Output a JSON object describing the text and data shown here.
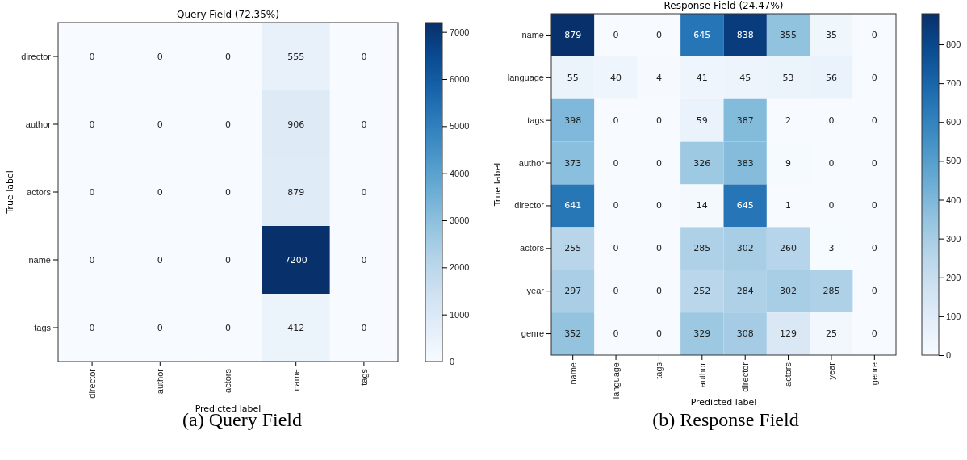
{
  "chart_data": [
    {
      "type": "heatmap",
      "title": "Query Field (72.35%)",
      "xlabel": "Predicted label",
      "ylabel": "True label",
      "categories": [
        "director",
        "author",
        "actors",
        "name",
        "tags"
      ],
      "y_categories": [
        "director",
        "author",
        "actors",
        "name",
        "tags"
      ],
      "cells": [
        [
          0,
          0,
          0,
          555,
          0
        ],
        [
          0,
          0,
          0,
          906,
          0
        ],
        [
          0,
          0,
          0,
          879,
          0
        ],
        [
          0,
          0,
          0,
          7200,
          0
        ],
        [
          0,
          0,
          0,
          412,
          0
        ]
      ],
      "clim": [
        0,
        7200
      ],
      "cticks": [
        0,
        1000,
        2000,
        3000,
        4000,
        5000,
        6000,
        7000
      ],
      "data_labels": true,
      "annotations": [
        "(a) Query Field"
      ]
    },
    {
      "type": "heatmap",
      "title": "Response Field (24.47%)",
      "xlabel": "Predicted label",
      "ylabel": "True label",
      "categories": [
        "name",
        "language",
        "tags",
        "author",
        "director",
        "actors",
        "year",
        "genre"
      ],
      "y_categories": [
        "name",
        "language",
        "tags",
        "author",
        "director",
        "actors",
        "year",
        "genre"
      ],
      "cells": [
        [
          879,
          0,
          0,
          645,
          838,
          355,
          35,
          0
        ],
        [
          55,
          40,
          4,
          41,
          45,
          53,
          56,
          0
        ],
        [
          398,
          0,
          0,
          59,
          387,
          2,
          0,
          0
        ],
        [
          373,
          0,
          0,
          326,
          383,
          9,
          0,
          0
        ],
        [
          641,
          0,
          0,
          14,
          645,
          1,
          0,
          0
        ],
        [
          255,
          0,
          0,
          285,
          302,
          260,
          3,
          0
        ],
        [
          297,
          0,
          0,
          252,
          284,
          302,
          285,
          0
        ],
        [
          352,
          0,
          0,
          329,
          308,
          129,
          25,
          0
        ]
      ],
      "clim": [
        0,
        879
      ],
      "cticks": [
        0,
        100,
        200,
        300,
        400,
        500,
        600,
        700,
        800
      ],
      "data_labels": true,
      "annotations": [
        "(b) Response Field"
      ]
    }
  ]
}
